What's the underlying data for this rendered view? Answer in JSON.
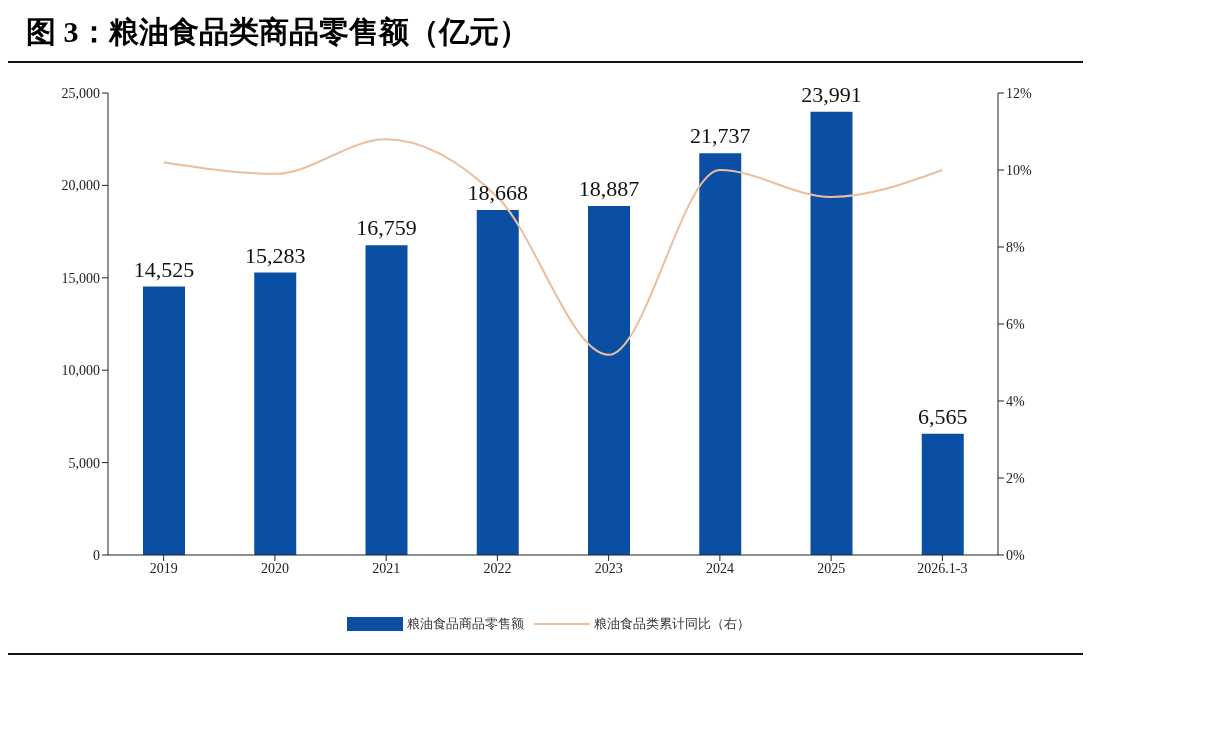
{
  "chart_data": {
    "type": "bar",
    "title": "图 3：粮油食品类商品零售额（亿元）",
    "categories": [
      "2019",
      "2020",
      "2021",
      "2022",
      "2023",
      "2024",
      "2025",
      "2026.1-3"
    ],
    "series": [
      {
        "name": "粮油食品商品零售额",
        "color": "#0b4fa5",
        "values": [
          14525,
          15283,
          16759,
          18668,
          18887,
          21737,
          23991,
          6565
        ],
        "value_labels": [
          "14,525",
          "15,283",
          "16,759",
          "18,668",
          "18,887",
          "21,737",
          "23,991",
          "6,565"
        ]
      },
      {
        "name": "粮油食品类累计同比（右）",
        "type": "line",
        "axis": "y2",
        "color": "#ebbf9d",
        "values": [
          10.2,
          9.9,
          10.8,
          9.3,
          5.2,
          10.0,
          9.3,
          10.0
        ]
      }
    ],
    "ylim": [
      0,
      25000
    ],
    "yticks": [
      {
        "value": 0,
        "label": "0"
      },
      {
        "value": 5000,
        "label": "5,000"
      },
      {
        "value": 10000,
        "label": "10,000"
      },
      {
        "value": 15000,
        "label": "15,000"
      },
      {
        "value": 20000,
        "label": "20,000"
      },
      {
        "value": 25000,
        "label": "25,000"
      }
    ],
    "y2lim": [
      0,
      12
    ],
    "y2ticks": [
      {
        "value": 0,
        "label": "0%"
      },
      {
        "value": 2,
        "label": "2%"
      },
      {
        "value": 4,
        "label": "4%"
      },
      {
        "value": 6,
        "label": "6%"
      },
      {
        "value": 8,
        "label": "8%"
      },
      {
        "value": 10,
        "label": "10%"
      },
      {
        "value": 12,
        "label": "12%"
      }
    ],
    "grid": false,
    "legend": "bottom",
    "marker": "none",
    "line_style": "solid"
  }
}
